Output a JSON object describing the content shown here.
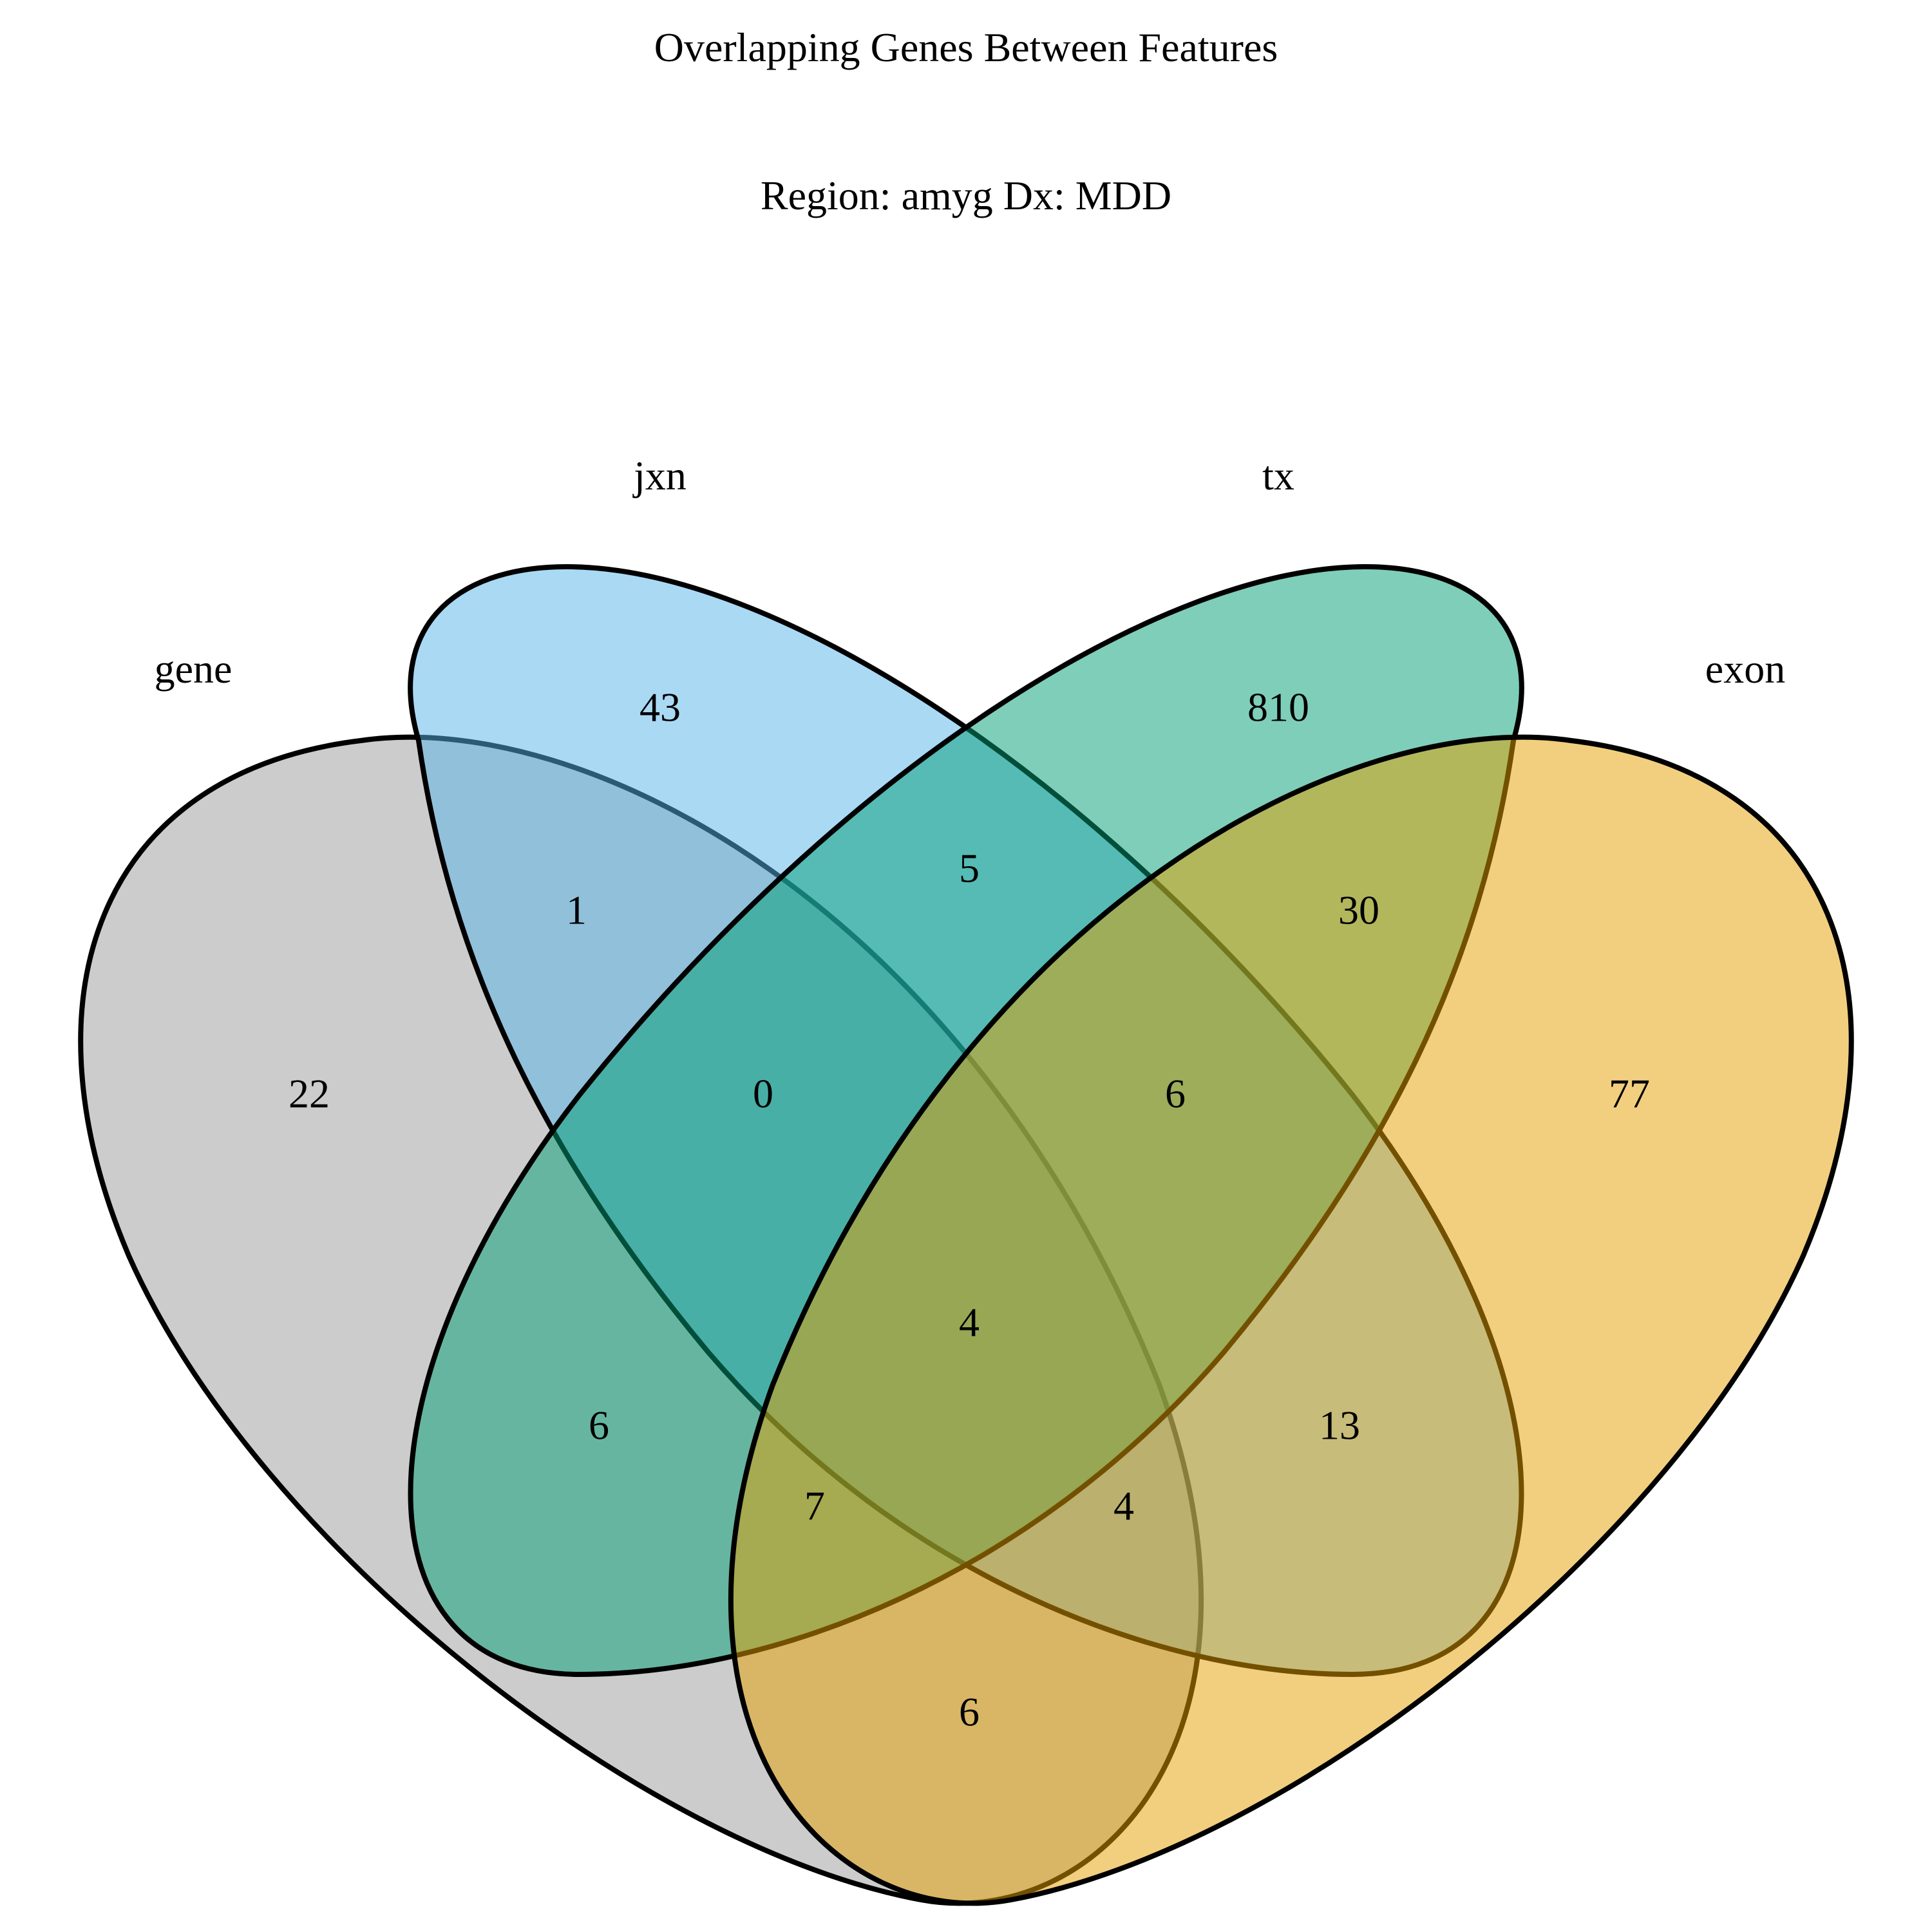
{
  "title": "Overlapping Genes Between Features",
  "subtitle": "Region: amyg Dx: MDD",
  "sets": [
    {
      "key": "gene",
      "label": "gene",
      "color": "#999999"
    },
    {
      "key": "jxn",
      "label": "jxn",
      "color": "#56B4E9"
    },
    {
      "key": "tx",
      "label": "tx",
      "color": "#009E73"
    },
    {
      "key": "exon",
      "label": "exon",
      "color": "#E69F00"
    }
  ],
  "regions": [
    {
      "sets": [
        "gene"
      ],
      "count": "22"
    },
    {
      "sets": [
        "jxn"
      ],
      "count": "43"
    },
    {
      "sets": [
        "tx"
      ],
      "count": "810"
    },
    {
      "sets": [
        "exon"
      ],
      "count": "77"
    },
    {
      "sets": [
        "gene",
        "jxn"
      ],
      "count": "1"
    },
    {
      "sets": [
        "jxn",
        "tx"
      ],
      "count": "5"
    },
    {
      "sets": [
        "tx",
        "exon"
      ],
      "count": "30"
    },
    {
      "sets": [
        "gene",
        "jxn",
        "tx"
      ],
      "count": "0"
    },
    {
      "sets": [
        "jxn",
        "tx",
        "exon"
      ],
      "count": "6"
    },
    {
      "sets": [
        "gene",
        "jxn",
        "tx",
        "exon"
      ],
      "count": "4"
    },
    {
      "sets": [
        "gene",
        "tx"
      ],
      "count": "6"
    },
    {
      "sets": [
        "jxn",
        "exon"
      ],
      "count": "13"
    },
    {
      "sets": [
        "gene",
        "tx",
        "exon"
      ],
      "count": "7"
    },
    {
      "sets": [
        "gene",
        "jxn",
        "exon"
      ],
      "count": "4"
    },
    {
      "sets": [
        "gene",
        "exon"
      ],
      "count": "6"
    }
  ]
}
